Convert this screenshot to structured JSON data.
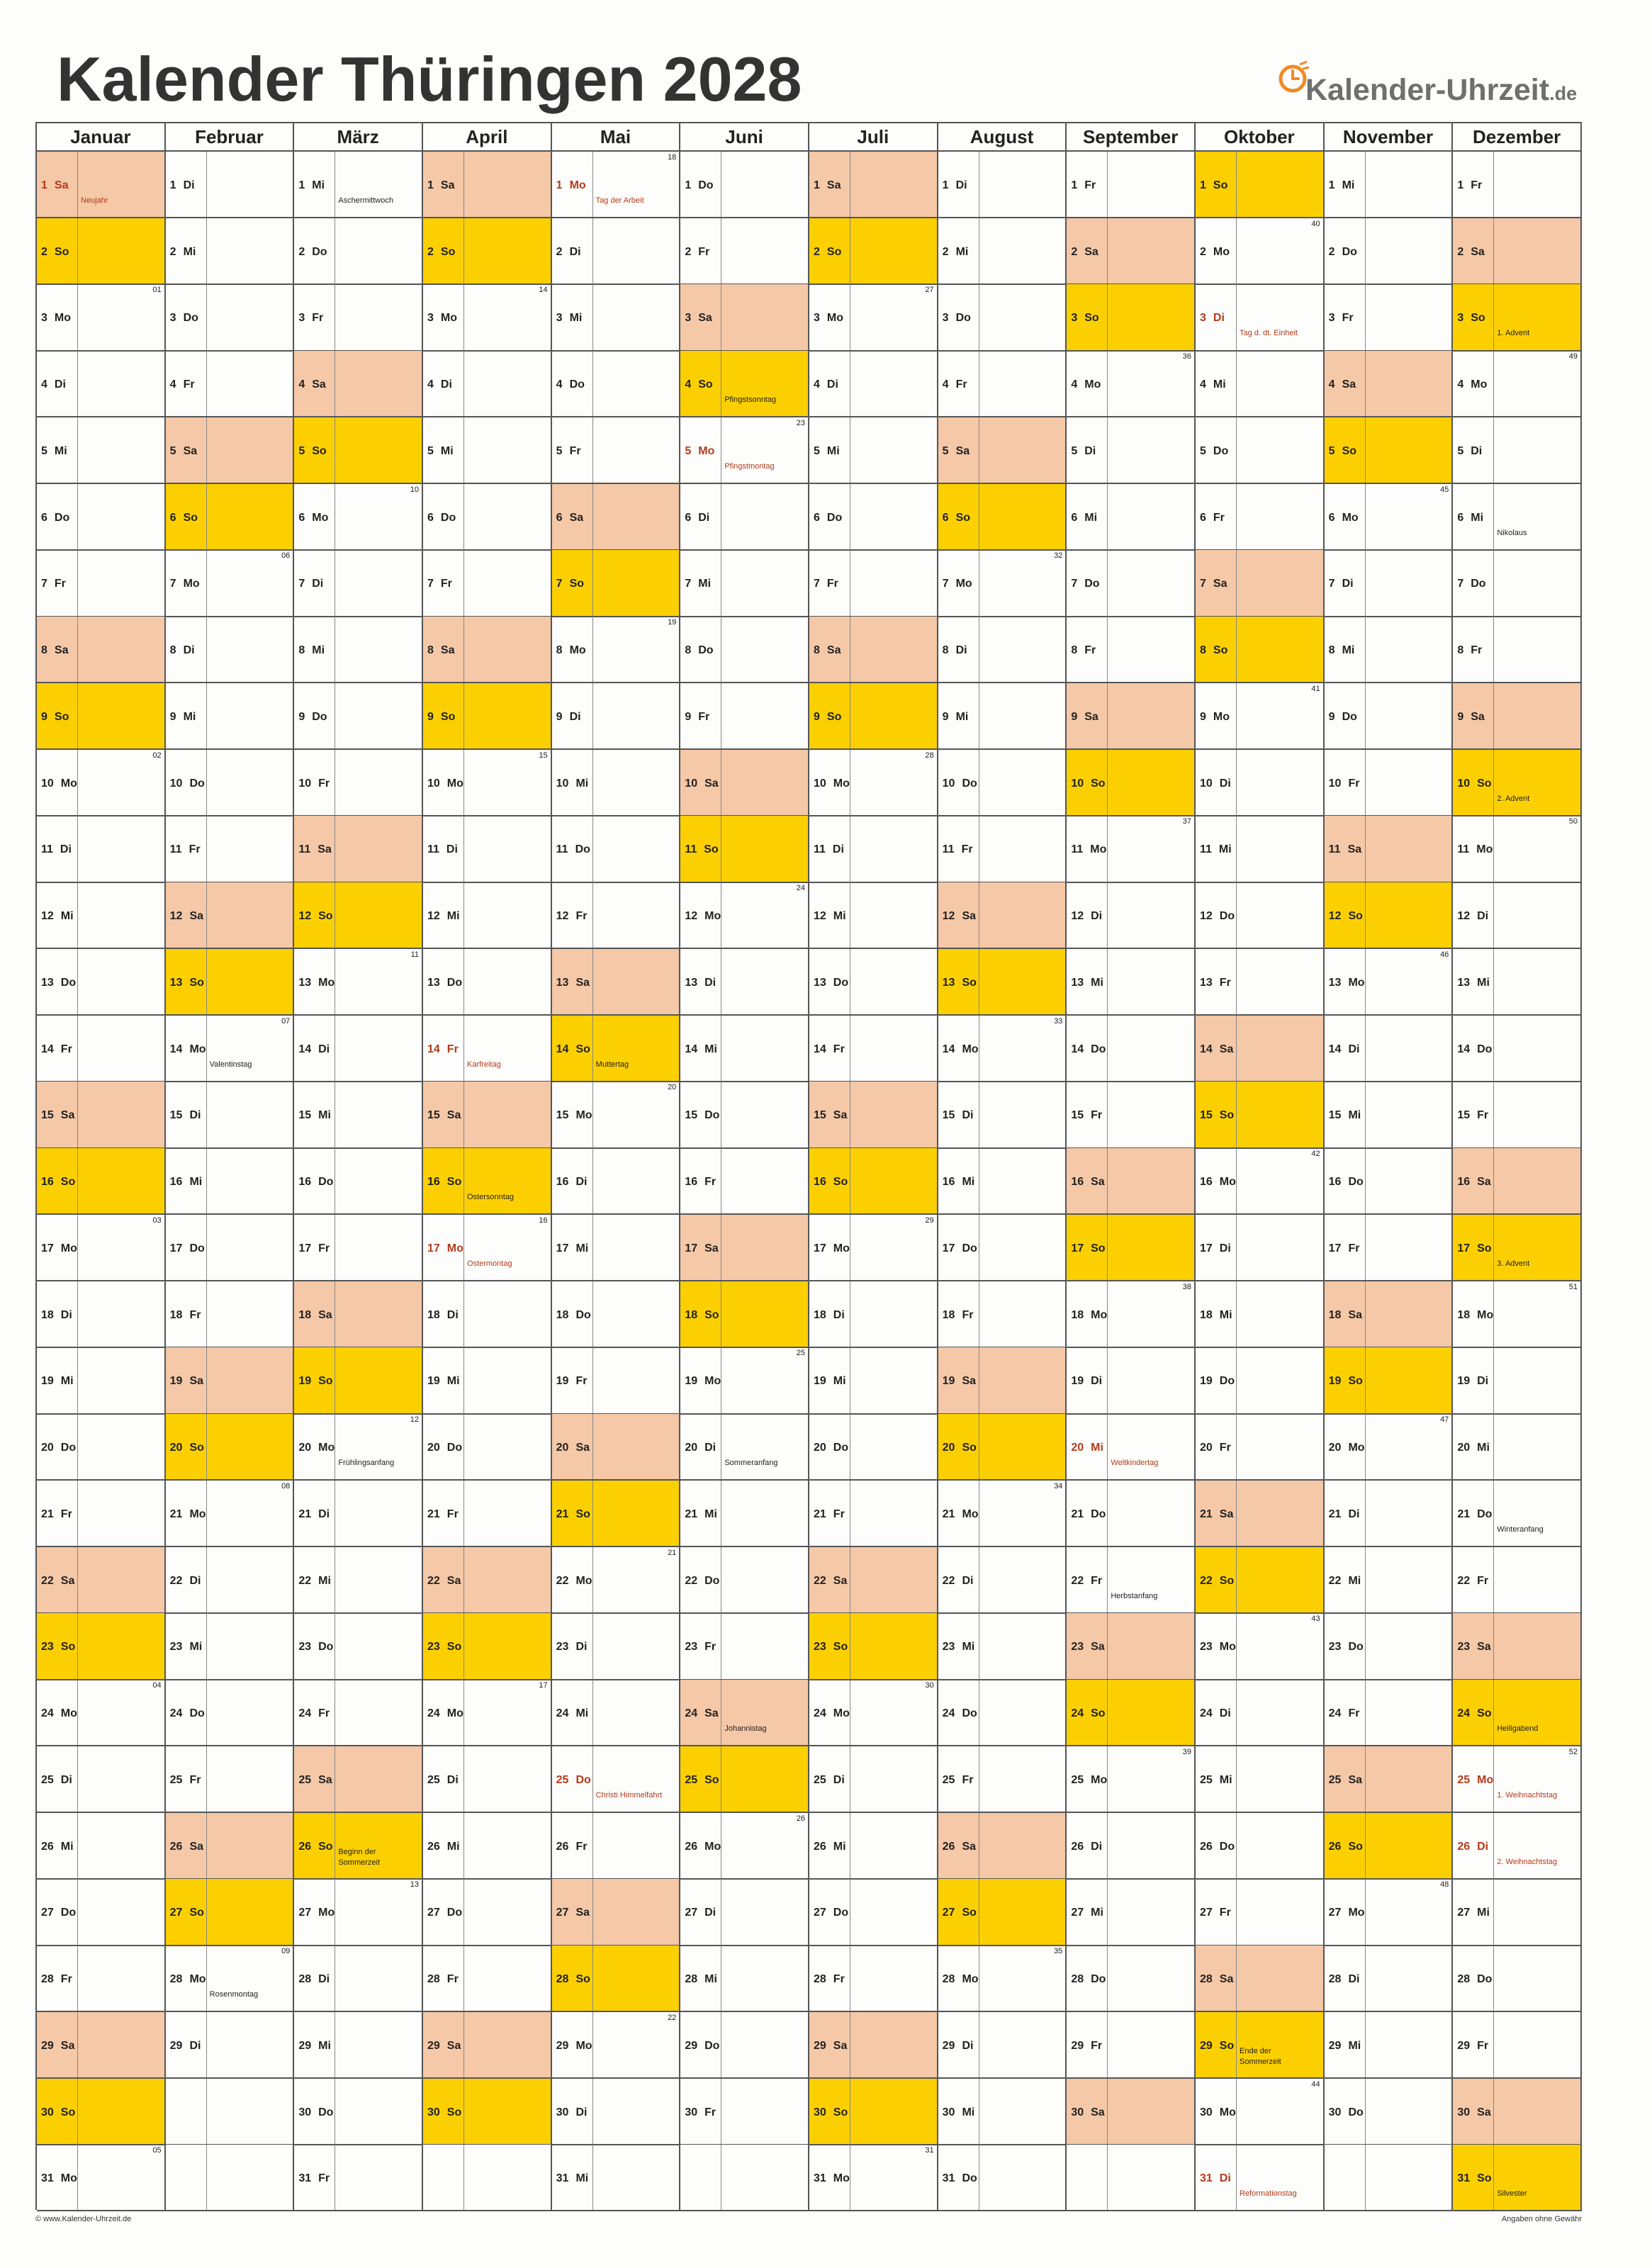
{
  "title": "Kalender Thüringen 2028",
  "logo": {
    "brand": "Kalender-Uhrzeit",
    "tld": ".de",
    "icon": "clock-icon"
  },
  "colors": {
    "saturday": "#f5c8a7",
    "sunday": "#fcd000",
    "holiday_text": "#b33a1a",
    "grid": "#555555"
  },
  "footer": {
    "left": "© www.Kalender-Uhrzeit.de",
    "right": "Angaben ohne Gewähr"
  },
  "months": [
    {
      "name": "Januar",
      "start": 6,
      "days": 31,
      "holidays": {
        "1": "Neujahr"
      },
      "notes": {},
      "kw": {
        "3": "01",
        "10": "02",
        "17": "03",
        "24": "04",
        "31": "05"
      }
    },
    {
      "name": "Februar",
      "start": 2,
      "days": 29,
      "holidays": {},
      "notes": {
        "14": "Valentinstag",
        "28": "Rosenmontag"
      },
      "kw": {
        "7": "06",
        "14": "07",
        "21": "08",
        "28": "09"
      }
    },
    {
      "name": "März",
      "start": 3,
      "days": 31,
      "holidays": {},
      "notes": {
        "1": "Aschermittwoch",
        "20": "Frühlingsanfang",
        "26": [
          "Beginn der",
          "Sommerzeit"
        ]
      },
      "kw": {
        "6": "10",
        "13": "11",
        "20": "12",
        "27": "13"
      }
    },
    {
      "name": "April",
      "start": 6,
      "days": 30,
      "holidays": {
        "14": "Karfreitag",
        "17": "Ostermontag"
      },
      "notes": {
        "16": "Ostersonntag"
      },
      "kw": {
        "3": "14",
        "10": "15",
        "17": "16",
        "24": "17"
      }
    },
    {
      "name": "Mai",
      "start": 1,
      "days": 31,
      "holidays": {
        "1": "Tag der Arbeit",
        "25": "Christi Himmelfahrt"
      },
      "notes": {
        "14": "Muttertag"
      },
      "kw": {
        "1": "18",
        "8": "19",
        "15": "20",
        "22": "21",
        "29": "22"
      }
    },
    {
      "name": "Juni",
      "start": 4,
      "days": 30,
      "holidays": {
        "5": "Pfingstmontag"
      },
      "notes": {
        "4": "Pfingstsonntag",
        "20": "Sommeranfang",
        "24": "Johannistag"
      },
      "kw": {
        "5": "23",
        "12": "24",
        "19": "25",
        "26": "26"
      }
    },
    {
      "name": "Juli",
      "start": 6,
      "days": 31,
      "holidays": {},
      "notes": {},
      "kw": {
        "3": "27",
        "10": "28",
        "17": "29",
        "24": "30",
        "31": "31"
      }
    },
    {
      "name": "August",
      "start": 2,
      "days": 31,
      "holidays": {},
      "notes": {},
      "kw": {
        "7": "32",
        "14": "33",
        "21": "34",
        "28": "35"
      }
    },
    {
      "name": "September",
      "start": 5,
      "days": 30,
      "holidays": {
        "20": "Weltkindertag"
      },
      "notes": {
        "22": "Herbstanfang"
      },
      "kw": {
        "4": "36",
        "11": "37",
        "18": "38",
        "25": "39"
      }
    },
    {
      "name": "Oktober",
      "start": 7,
      "days": 31,
      "holidays": {
        "3": "Tag d. dt. Einheit",
        "31": "Reformationstag"
      },
      "notes": {
        "29": [
          "Ende der",
          "Sommerzeit"
        ]
      },
      "kw": {
        "2": "40",
        "9": "41",
        "16": "42",
        "23": "43",
        "30": "44"
      }
    },
    {
      "name": "November",
      "start": 3,
      "days": 30,
      "holidays": {},
      "notes": {},
      "kw": {
        "6": "45",
        "13": "46",
        "20": "47",
        "27": "48"
      }
    },
    {
      "name": "Dezember",
      "start": 5,
      "days": 31,
      "holidays": {
        "25": "1. Weihnachtstag",
        "26": "2. Weihnachtstag"
      },
      "notes": {
        "3": "1. Advent",
        "6": "Nikolaus",
        "10": "2. Advent",
        "17": "3. Advent",
        "21": "Winteranfang",
        "24": "Heiligabend",
        "31": "Silvester"
      },
      "kw": {
        "4": "49",
        "11": "50",
        "18": "51",
        "25": "52"
      }
    }
  ],
  "weekdays": [
    "Mo",
    "Di",
    "Mi",
    "Do",
    "Fr",
    "Sa",
    "So"
  ]
}
